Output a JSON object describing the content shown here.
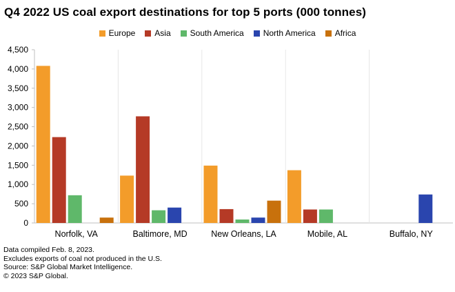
{
  "chart_data": {
    "type": "bar",
    "title": "Q4 2022 US coal export destinations for top 5 ports (000 tonnes)",
    "categories": [
      "Norfolk, VA",
      "Baltimore, MD",
      "New Orleans, LA",
      "Mobile, AL",
      "Buffalo, NY"
    ],
    "series": [
      {
        "name": "Europe",
        "color": "#f39c2a",
        "values": [
          4080,
          1230,
          1490,
          1370,
          0
        ]
      },
      {
        "name": "Asia",
        "color": "#b53a26",
        "values": [
          2230,
          2770,
          360,
          350,
          0
        ]
      },
      {
        "name": "South America",
        "color": "#5fb86a",
        "values": [
          720,
          330,
          90,
          350,
          0
        ]
      },
      {
        "name": "North America",
        "color": "#2a45ae",
        "values": [
          0,
          400,
          140,
          0,
          740
        ]
      },
      {
        "name": "Africa",
        "color": "#c8710c",
        "values": [
          140,
          0,
          580,
          0,
          0
        ]
      }
    ],
    "y_ticks": [
      "0",
      "500",
      "1,000",
      "1,500",
      "2,000",
      "2,500",
      "3,000",
      "3,500",
      "4,000",
      "4,500"
    ],
    "ylim": [
      0,
      4500
    ],
    "xlabel": "",
    "ylabel": "",
    "legend_position": "top-center",
    "grid": false
  },
  "footnotes": [
    "Data compiled Feb. 8, 2023.",
    "Excludes exports of coal not produced in the U.S.",
    "Source: S&P Global Market Intelligence.",
    "© 2023 S&P Global."
  ]
}
